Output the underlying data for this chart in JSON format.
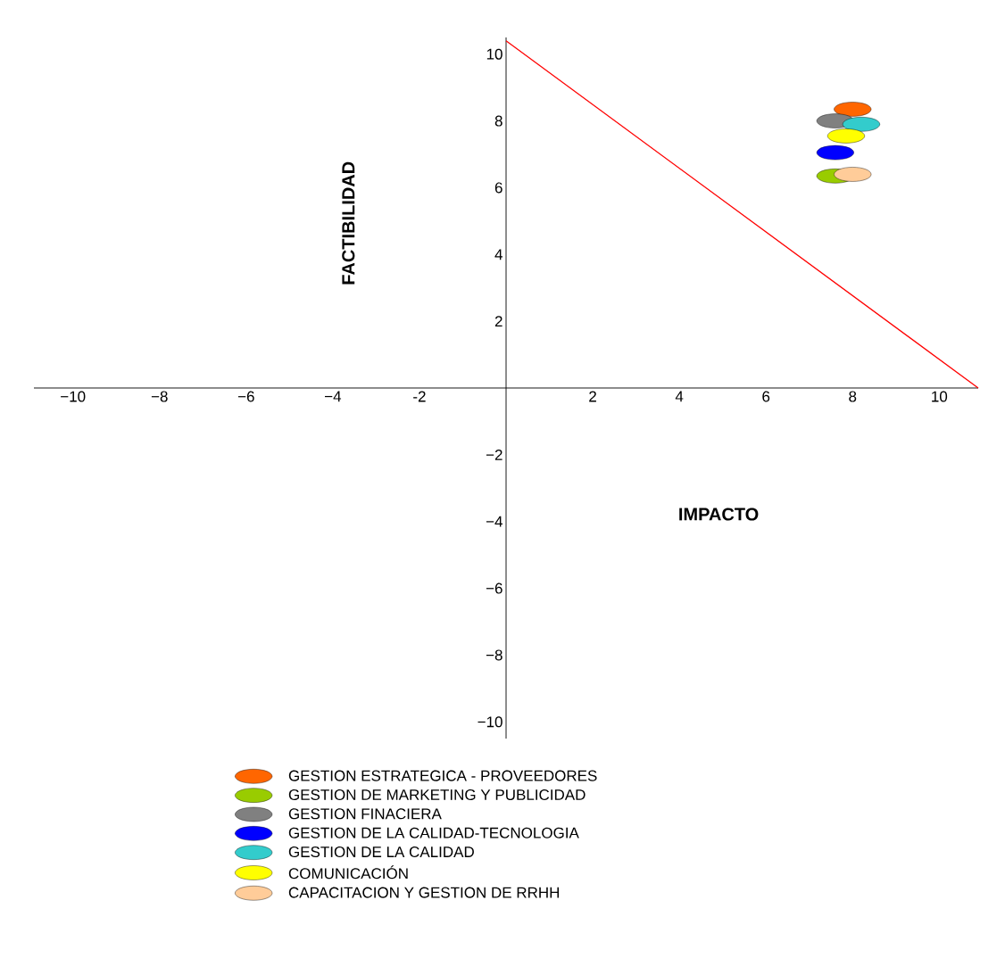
{
  "chart_data": {
    "type": "scatter",
    "xlabel": "IMPACTO",
    "ylabel": "FACTIBILIDAD",
    "xlim": [
      -10.9,
      10.9
    ],
    "ylim": [
      -10.5,
      10.5
    ],
    "xticks": [
      {
        "value": -10,
        "label": "−10"
      },
      {
        "value": -8,
        "label": "−8"
      },
      {
        "value": -6,
        "label": "−6"
      },
      {
        "value": -4,
        "label": "−4"
      },
      -2,
      2,
      4,
      6,
      8,
      10
    ],
    "yticks": [
      {
        "value": -10,
        "label": "−10"
      },
      {
        "value": -8,
        "label": "−8"
      },
      {
        "value": -6,
        "label": "−6"
      },
      {
        "value": -4,
        "label": "−4"
      },
      {
        "value": -2,
        "label": "−2"
      },
      2,
      4,
      6,
      8,
      10
    ],
    "marker": "circle",
    "legend": "bottom",
    "series": [
      {
        "type": "line",
        "marker": "none",
        "color": "#ff0000",
        "x": [
          0,
          10.9
        ],
        "values": [
          10.4,
          0
        ]
      },
      {
        "name": "GESTION ESTRATEGICA  - PROVEEDORES",
        "color": "#ff6600",
        "x": [
          8.0
        ],
        "values": [
          8.35
        ]
      },
      {
        "name": "GESTION DE MARKETING Y PUBLICIDAD",
        "color": "#99cc00",
        "x": [
          7.6
        ],
        "values": [
          6.35
        ]
      },
      {
        "name": "GESTION FINACIERA",
        "color": "#808080",
        "x": [
          7.6
        ],
        "values": [
          8.0
        ]
      },
      {
        "name": "GESTION DE LA CALIDAD-TECNOLOGIA",
        "color": "#0000ff",
        "x": [
          7.6
        ],
        "values": [
          7.05
        ]
      },
      {
        "name": "GESTION DE LA CALIDAD",
        "color": "#33cccc",
        "x": [
          8.2
        ],
        "values": [
          7.9
        ]
      },
      {
        "name": "COMUNICACIÓN",
        "color": "#ffff00",
        "x": [
          7.85
        ],
        "values": [
          7.55
        ]
      },
      {
        "name": "CAPACITACION Y GESTION DE RRHH",
        "color": "#ffcc99",
        "x": [
          8.0
        ],
        "values": [
          6.4
        ]
      }
    ]
  }
}
